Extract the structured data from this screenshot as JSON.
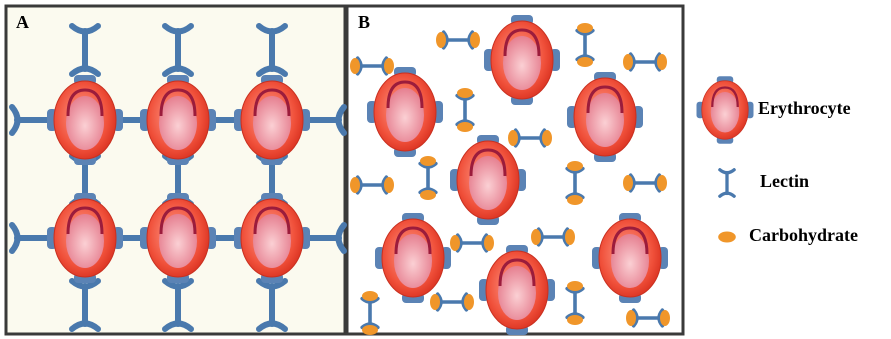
{
  "panels": {
    "a": {
      "label": "A"
    },
    "b": {
      "label": "B"
    }
  },
  "legend": {
    "items": [
      {
        "label": "Erythrocyte"
      },
      {
        "label": "Lectin"
      },
      {
        "label": "Carbohydrate"
      }
    ]
  }
}
